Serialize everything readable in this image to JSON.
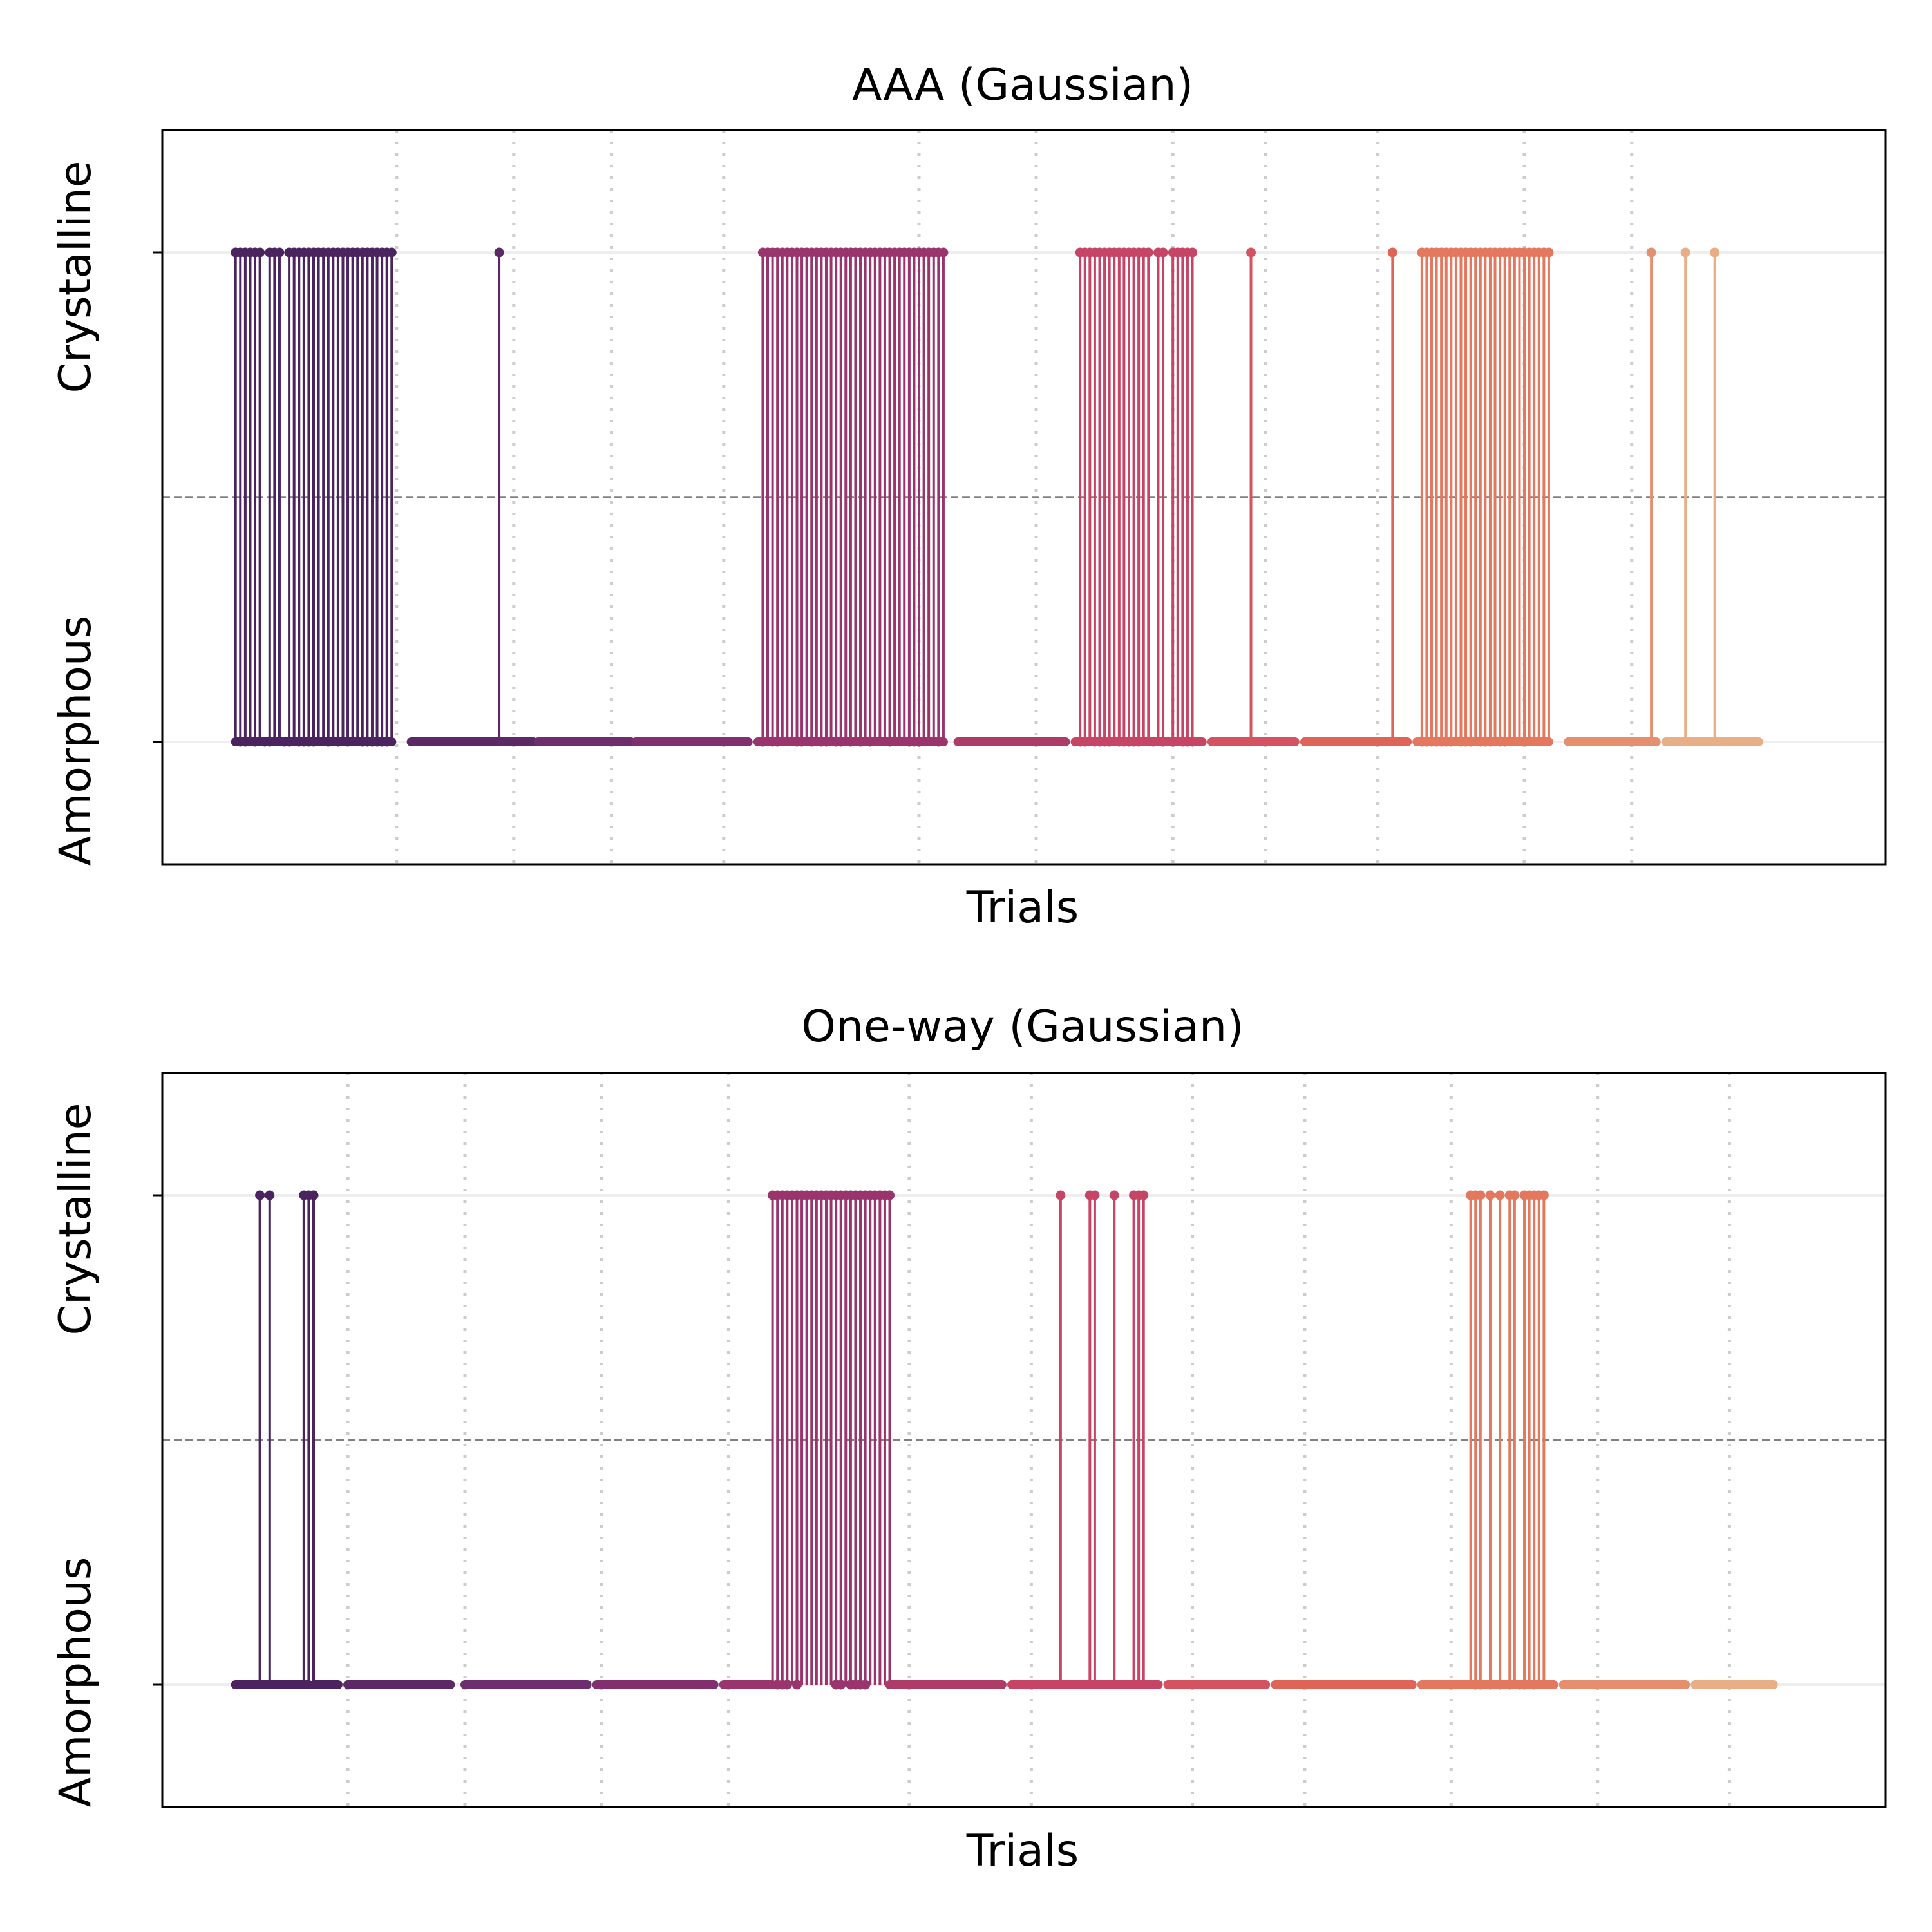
{
  "chart_data": [
    {
      "type": "line",
      "title": "AAA (Gaussian)",
      "xlabel": "Trials",
      "ylabel": "",
      "y_categories": [
        "Amorphous",
        "Crystalline"
      ],
      "ylim": [
        -0.25,
        1.25
      ],
      "xlim": [
        -12,
        341
      ],
      "threshold": 0.5,
      "x_ticks_shown": false,
      "horizontal_grid": true,
      "segments": [
        {
          "start": 3,
          "end": 35,
          "color": "#4a235f",
          "crystalline": [
            3,
            4,
            5,
            6,
            7,
            8,
            10,
            11,
            12,
            14,
            15,
            16,
            17,
            18,
            19,
            20,
            21,
            22,
            23,
            24,
            25,
            26,
            27,
            28,
            29,
            30,
            31,
            32,
            33,
            34,
            35
          ],
          "amorphous": [
            4,
            5,
            7,
            9,
            10,
            13,
            14,
            16,
            17,
            18,
            19,
            22,
            24,
            26,
            29,
            30,
            31,
            32,
            33,
            34
          ]
        },
        {
          "start": 39,
          "end": 64,
          "color": "#5b2966",
          "crystalline": [
            57
          ],
          "amorphous": []
        },
        {
          "start": 65,
          "end": 84,
          "color": "#6e2d6c",
          "crystalline": [],
          "amorphous": []
        },
        {
          "start": 85,
          "end": 108,
          "color": "#822f6e",
          "crystalline": [],
          "amorphous": []
        },
        {
          "start": 110,
          "end": 148,
          "color": "#9a346c",
          "crystalline": [
            111,
            112,
            113,
            114,
            115,
            116,
            117,
            118,
            119,
            120,
            121,
            122,
            123,
            124,
            125,
            126,
            127,
            128,
            129,
            130,
            131,
            132,
            133,
            134,
            135,
            136,
            137,
            138,
            139,
            140,
            141,
            142,
            143,
            144,
            145,
            146,
            147,
            148
          ],
          "amorphous": [
            111,
            113,
            114,
            118,
            119,
            121,
            123,
            124,
            126,
            127,
            129,
            131,
            133,
            137,
            141,
            142,
            143,
            147
          ]
        },
        {
          "start": 151,
          "end": 173,
          "color": "#ae3c69",
          "crystalline": [],
          "amorphous": []
        },
        {
          "start": 175,
          "end": 201,
          "color": "#c64566",
          "crystalline": [
            176,
            177,
            178,
            179,
            180,
            181,
            182,
            183,
            184,
            185,
            186,
            187,
            188,
            189,
            190,
            192,
            193,
            195,
            196,
            197,
            198,
            199
          ],
          "amorphous": [
            176,
            177,
            179,
            180,
            181,
            182,
            184,
            185,
            186,
            187,
            188,
            191,
            193,
            195,
            197,
            198,
            199
          ]
        },
        {
          "start": 203,
          "end": 220,
          "color": "#d55360",
          "crystalline": [
            211
          ],
          "amorphous": []
        },
        {
          "start": 222,
          "end": 243,
          "color": "#de6458",
          "crystalline": [
            240
          ],
          "amorphous": []
        },
        {
          "start": 245,
          "end": 272,
          "color": "#e3785e",
          "crystalline": [
            246,
            247,
            248,
            249,
            250,
            251,
            252,
            253,
            254,
            255,
            256,
            257,
            258,
            259,
            260,
            261,
            262,
            263,
            264,
            265,
            266,
            267,
            268,
            269,
            270,
            271,
            272
          ],
          "amorphous": [
            246,
            247,
            248,
            249,
            250,
            251,
            252,
            254,
            255,
            256,
            258,
            259,
            260,
            262,
            263
          ]
        },
        {
          "start": 276,
          "end": 294,
          "color": "#e68f6e",
          "crystalline": [
            293
          ],
          "amorphous": []
        },
        {
          "start": 296,
          "end": 315,
          "color": "#e8ae86",
          "crystalline": [
            300,
            306
          ],
          "amorphous": []
        }
      ],
      "boundaries": [
        36,
        60,
        80,
        103,
        143,
        167,
        195,
        214,
        237,
        267,
        289
      ]
    },
    {
      "type": "line",
      "title": "One-way (Gaussian)",
      "xlabel": "Trials",
      "ylabel": "",
      "y_categories": [
        "Amorphous",
        "Crystalline"
      ],
      "ylim": [
        -0.25,
        1.25
      ],
      "xlim": [
        -12,
        341
      ],
      "threshold": 0.5,
      "x_ticks_shown": false,
      "horizontal_grid": true,
      "segments": [
        {
          "start": 3,
          "end": 18,
          "color": "#4a235f",
          "crystalline": [
            8,
            10,
            17,
            18,
            19
          ],
          "amorphous": []
        },
        {
          "start": 19,
          "end": 24,
          "color": "#4a235f",
          "crystalline": [],
          "amorphous": []
        },
        {
          "start": 26,
          "end": 47,
          "color": "#5b2966",
          "crystalline": [],
          "amorphous": []
        },
        {
          "start": 50,
          "end": 75,
          "color": "#6e2d6c",
          "crystalline": [],
          "amorphous": []
        },
        {
          "start": 77,
          "end": 101,
          "color": "#822f6e",
          "crystalline": [],
          "amorphous": []
        },
        {
          "start": 103,
          "end": 113,
          "color": "#9a346c",
          "crystalline": [
            113,
            114,
            115,
            116,
            117,
            118,
            119,
            120,
            121,
            122,
            123,
            124,
            125,
            126,
            127,
            128,
            129,
            130,
            131,
            132,
            133,
            134,
            135,
            136,
            137
          ],
          "amorphous": [
            114,
            115,
            116,
            118,
            126,
            127,
            129,
            130,
            131,
            132
          ]
        },
        {
          "start": 137,
          "end": 160,
          "color": "#ae3c69",
          "crystalline": [],
          "amorphous": []
        },
        {
          "start": 162,
          "end": 192,
          "color": "#c64566",
          "crystalline": [
            172,
            178,
            179,
            183,
            187,
            188,
            189
          ],
          "amorphous": []
        },
        {
          "start": 194,
          "end": 214,
          "color": "#d55360",
          "crystalline": [],
          "amorphous": []
        },
        {
          "start": 216,
          "end": 244,
          "color": "#de6458",
          "crystalline": [],
          "amorphous": []
        },
        {
          "start": 246,
          "end": 273,
          "color": "#e3785e",
          "crystalline": [
            256,
            257,
            258,
            260,
            262,
            264,
            265,
            267,
            268,
            269,
            270,
            271
          ],
          "amorphous": [
            257,
            258,
            260,
            262,
            264,
            266,
            267,
            269
          ]
        },
        {
          "start": 275,
          "end": 300,
          "color": "#e68f6e",
          "crystalline": [],
          "amorphous": []
        },
        {
          "start": 302,
          "end": 318,
          "color": "#e8ae86",
          "crystalline": [],
          "amorphous": []
        }
      ],
      "boundaries": [
        26,
        50,
        78,
        104,
        141,
        166,
        199,
        222,
        252,
        282,
        309
      ]
    }
  ]
}
